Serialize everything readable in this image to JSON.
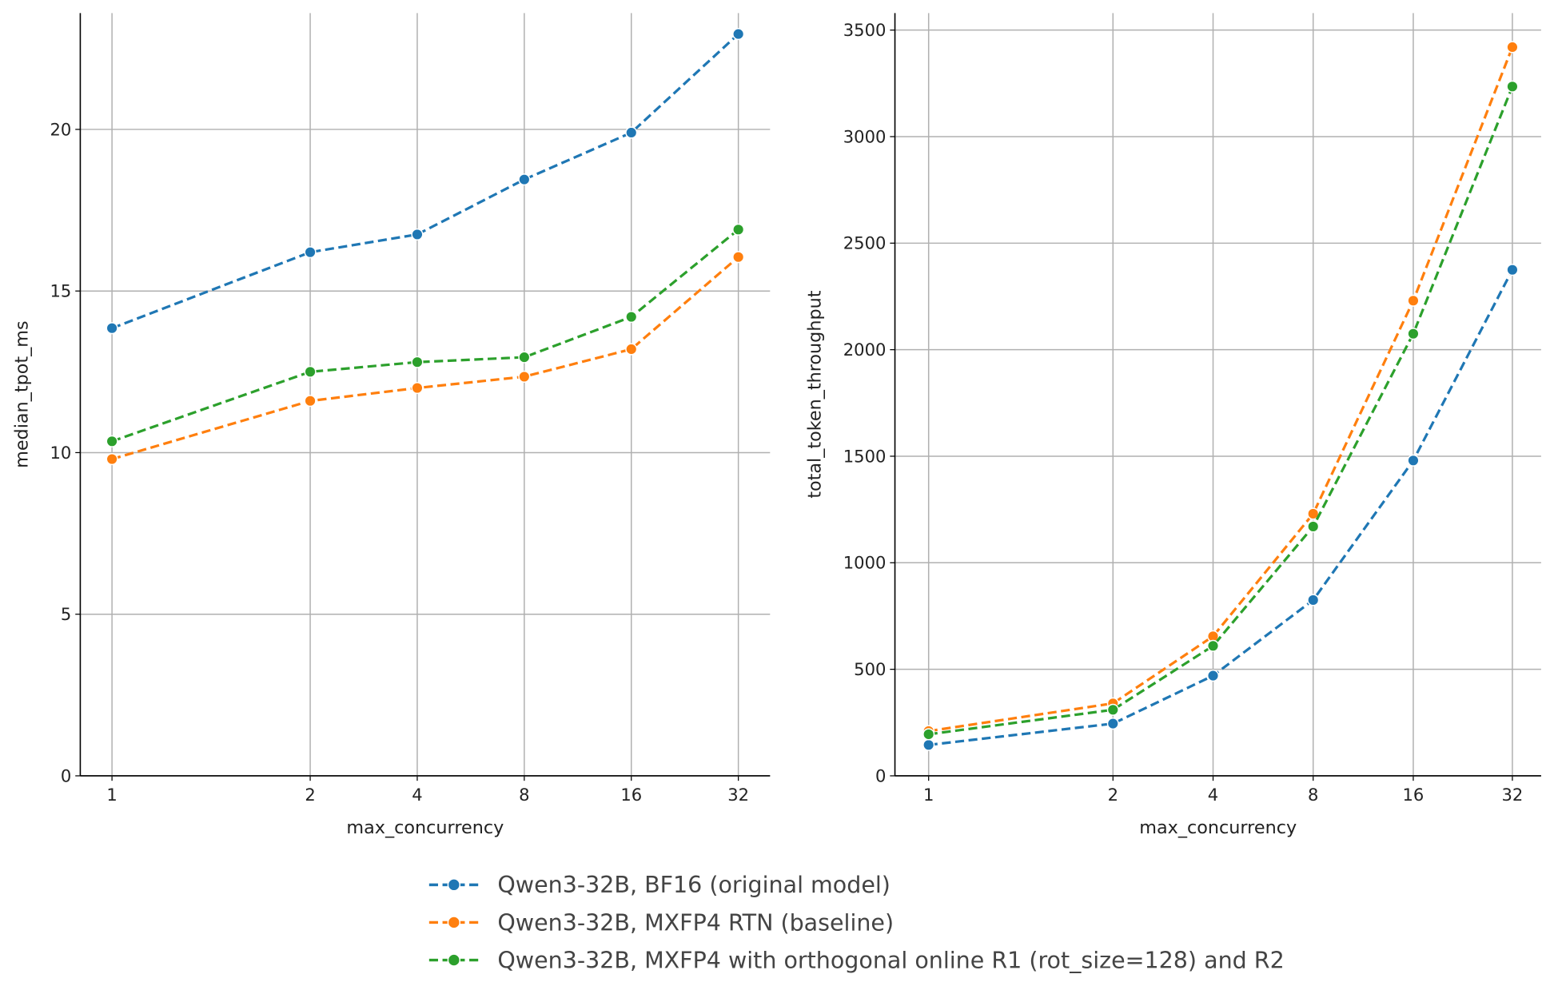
{
  "chart_data": [
    {
      "type": "line",
      "xlabel": "max_concurrency",
      "ylabel": "median_tpot_ms",
      "x": [
        1,
        2,
        4,
        8,
        16,
        32
      ],
      "x_tick_labels": [
        "1",
        "2",
        "4",
        "8",
        "16",
        "32"
      ],
      "y_ticks": [
        0,
        5,
        10,
        15,
        20
      ],
      "y_tick_labels": [
        "0",
        "5",
        "10",
        "15",
        "20"
      ],
      "ylim": [
        0,
        23.6
      ],
      "grid": true,
      "series": [
        {
          "name": "Qwen3-32B, BF16 (original model)",
          "color": "#1f77b4",
          "values": [
            13.85,
            16.2,
            16.75,
            18.45,
            19.9,
            22.95
          ]
        },
        {
          "name": "Qwen3-32B, MXFP4 RTN (baseline)",
          "color": "#ff7f0e",
          "values": [
            9.8,
            11.6,
            12.0,
            12.35,
            13.2,
            16.05
          ]
        },
        {
          "name": "Qwen3-32B, MXFP4 with orthogonal online R1 (rot_size=128) and R2",
          "color": "#2ca02c",
          "values": [
            10.35,
            12.5,
            12.8,
            12.95,
            14.2,
            16.9
          ]
        }
      ]
    },
    {
      "type": "line",
      "xlabel": "max_concurrency",
      "ylabel": "total_token_throughput",
      "x": [
        1,
        2,
        4,
        8,
        16,
        32
      ],
      "x_tick_labels": [
        "1",
        "2",
        "4",
        "8",
        "16",
        "32"
      ],
      "y_ticks": [
        0,
        500,
        1000,
        1500,
        2000,
        2500,
        3000,
        3500
      ],
      "y_tick_labels": [
        "0",
        "500",
        "1000",
        "1500",
        "2000",
        "2500",
        "3000",
        "3500"
      ],
      "ylim": [
        0,
        3580
      ],
      "grid": true,
      "series": [
        {
          "name": "Qwen3-32B, BF16 (original model)",
          "color": "#1f77b4",
          "values": [
            145,
            245,
            470,
            825,
            1480,
            2375
          ]
        },
        {
          "name": "Qwen3-32B, MXFP4 RTN (baseline)",
          "color": "#ff7f0e",
          "values": [
            210,
            340,
            655,
            1230,
            2230,
            3420
          ]
        },
        {
          "name": "Qwen3-32B, MXFP4 with orthogonal online R1 (rot_size=128) and R2",
          "color": "#2ca02c",
          "values": [
            195,
            310,
            610,
            1170,
            2075,
            3235
          ]
        }
      ]
    }
  ],
  "legend": {
    "placement": "bottom-center",
    "entries": [
      {
        "label": "Qwen3-32B, BF16 (original model)",
        "color": "#1f77b4"
      },
      {
        "label": "Qwen3-32B, MXFP4 RTN (baseline)",
        "color": "#ff7f0e"
      },
      {
        "label": "Qwen3-32B, MXFP4 with orthogonal online R1 (rot_size=128) and R2",
        "color": "#2ca02c"
      }
    ]
  }
}
